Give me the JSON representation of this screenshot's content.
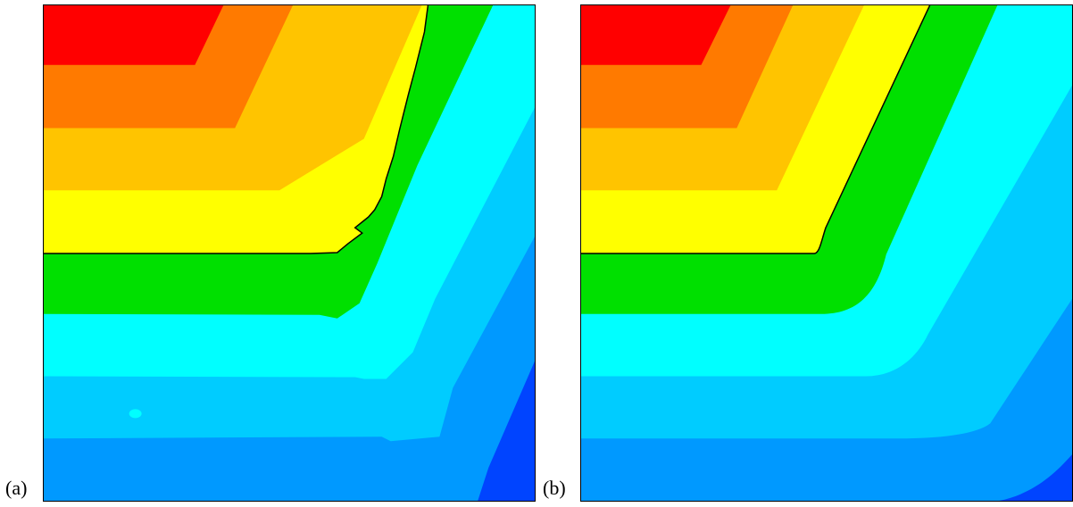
{
  "figure": {
    "labels": {
      "a": "(a)",
      "b": "(b)"
    }
  },
  "colors": {
    "band_1": "#0044ff",
    "band_2": "#0099ff",
    "band_3": "#00ccff",
    "band_4": "#00ffff",
    "band_5": "#00e000",
    "band_6": "#ffff00",
    "band_7": "#ffc400",
    "band_8": "#ff7a00",
    "band_9": "#ff0000",
    "interface_line": "#000000"
  }
}
